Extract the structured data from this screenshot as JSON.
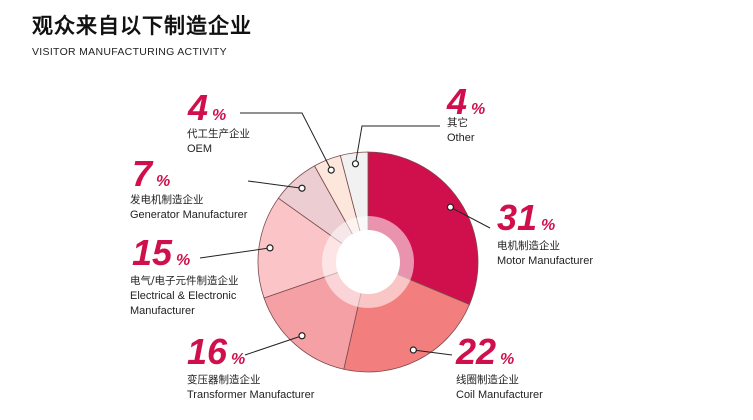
{
  "header": {
    "title": "观众来自以下制造企业",
    "subtitle": "VISITOR MANUFACTURING ACTIVITY"
  },
  "colors": {
    "accent": "#d0104c"
  },
  "chart_data": {
    "type": "pie",
    "style": "donut",
    "title": "观众来自以下制造企业",
    "subtitle": "VISITOR MANUFACTURING ACTIVITY",
    "legend_placement": "around-chart",
    "slices": [
      {
        "pct_text": "31",
        "value": 31,
        "zh": "电机制造企业",
        "en": "Motor Manufacturer",
        "en2": "",
        "color": "#d0104c"
      },
      {
        "pct_text": "22",
        "value": 22,
        "zh": "线圈制造企业",
        "en": "Coil Manufacturer",
        "en2": "",
        "color": "#f27e7e"
      },
      {
        "pct_text": "16",
        "value": 16,
        "zh": "变压器制造企业",
        "en": "Transformer Manufacturer",
        "en2": "",
        "color": "#f4a0a4"
      },
      {
        "pct_text": "15",
        "value": 15,
        "zh": "电气/电子元件制造企业",
        "en": "Electrical & Electronic",
        "en2": "Manufacturer",
        "color": "#fbc4c6"
      },
      {
        "pct_text": "7",
        "value": 7,
        "zh": "发电机制造企业",
        "en": "Generator Manufacturer",
        "en2": "",
        "color": "#eccdd1"
      },
      {
        "pct_text": "4",
        "value": 4,
        "zh": "代工生产企业",
        "en": "OEM",
        "en2": "",
        "color": "#fde6dc"
      },
      {
        "pct_text": "4",
        "value": 4,
        "zh": "其它",
        "en": "Other",
        "en2": "",
        "color": "#f1f1f1"
      }
    ],
    "percent_sign": "%"
  }
}
